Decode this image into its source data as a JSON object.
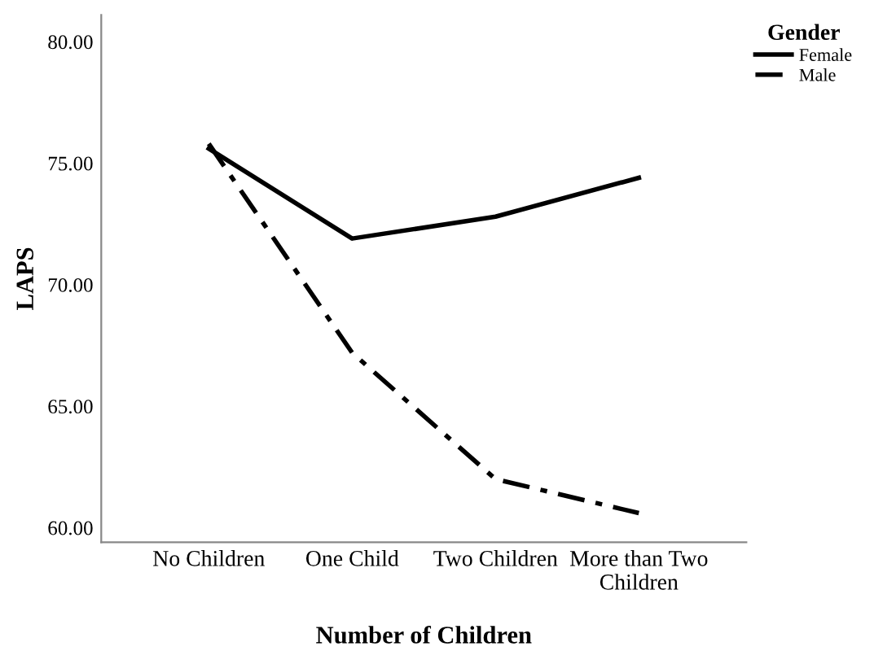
{
  "chart_data": {
    "type": "line",
    "xlabel": "Number of Children",
    "ylabel": "LAPS",
    "legend_title": "Gender",
    "categories": [
      "No Children",
      "One Child",
      "Two Children",
      "More than Two\nChildren"
    ],
    "series": [
      {
        "name": "Female",
        "color": "#000000",
        "line_style": "solid",
        "values": [
          75.6,
          71.9,
          72.8,
          74.4
        ]
      },
      {
        "name": "Male",
        "color": "#000000",
        "line_style": "dashdot",
        "values": [
          75.8,
          67.2,
          62.0,
          60.6
        ]
      }
    ],
    "ylim": [
      59.4,
      81.1
    ],
    "yticks": [
      {
        "value": 60,
        "label": "60.00"
      },
      {
        "value": 65,
        "label": "65.00"
      },
      {
        "value": 70,
        "label": "70.00"
      },
      {
        "value": 75,
        "label": "75.00"
      },
      {
        "value": 80,
        "label": "80.00"
      }
    ],
    "grid": false,
    "legend": "top right",
    "marker": "none"
  }
}
